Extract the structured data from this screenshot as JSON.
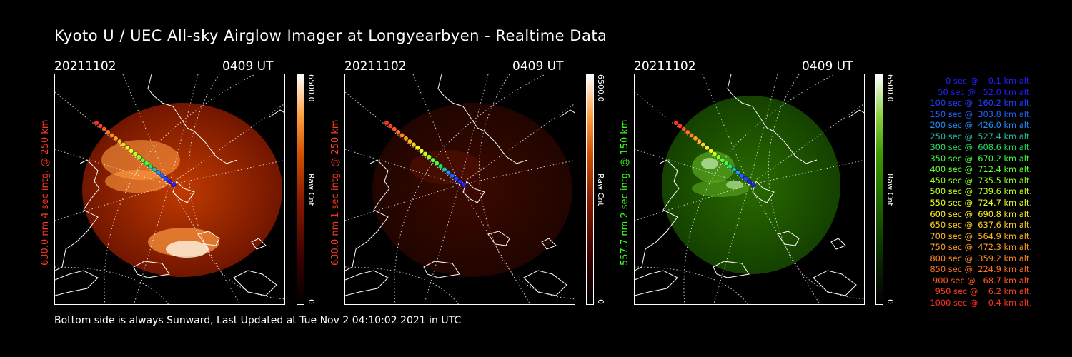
{
  "title": "Kyoto U / UEC All-sky Airglow Imager at Longyearbyen - Realtime Data",
  "panels": [
    {
      "date": "20211102",
      "time": "0409 UT",
      "channel_label": "630.0 nm  4 sec intg. @ 250 km",
      "label_color": "#ff3a20",
      "cbar_max": "6500.0",
      "cbar_unit": "Raw Cnt",
      "cbar_min": "0",
      "palette": "red"
    },
    {
      "date": "20211102",
      "time": "0409 UT",
      "channel_label": "630.0 nm  1 sec intg. @ 250 km",
      "label_color": "#ff3a20",
      "cbar_max": "6500.0",
      "cbar_unit": "Raw Cnt",
      "cbar_min": "0",
      "palette": "dimred"
    },
    {
      "date": "20211102",
      "time": "0409 UT",
      "channel_label": "557.7 nm  2 sec intg. @ 150 km",
      "label_color": "#3cff20",
      "cbar_max": "6500.0",
      "cbar_unit": "Raw Cnt",
      "cbar_min": "0",
      "palette": "green"
    }
  ],
  "footer": "Bottom side is always Sunward, Last Updated at Tue Nov  2 04:10:02 2021 in UTC",
  "legend": [
    {
      "text": "   0 sec @    0.1 km alt.",
      "color": "#2020ff"
    },
    {
      "text": "  50 sec @   52.0 km alt.",
      "color": "#2020ff"
    },
    {
      "text": " 100 sec @  160.2 km alt.",
      "color": "#2040ff"
    },
    {
      "text": " 150 sec @  303.8 km alt.",
      "color": "#2060ff"
    },
    {
      "text": " 200 sec @  426.0 km alt.",
      "color": "#2090ff"
    },
    {
      "text": " 250 sec @  527.4 km alt.",
      "color": "#20c0a0"
    },
    {
      "text": " 300 sec @  608.6 km alt.",
      "color": "#20e060"
    },
    {
      "text": " 350 sec @  670.2 km alt.",
      "color": "#40ff40"
    },
    {
      "text": " 400 sec @  712.4 km alt.",
      "color": "#60ff30"
    },
    {
      "text": " 450 sec @  735.5 km alt.",
      "color": "#90ff20"
    },
    {
      "text": " 500 sec @  739.6 km alt.",
      "color": "#c0ff20"
    },
    {
      "text": " 550 sec @  724.7 km alt.",
      "color": "#e8ff20"
    },
    {
      "text": " 600 sec @  690.8 km alt.",
      "color": "#ffee20"
    },
    {
      "text": " 650 sec @  637.6 km alt.",
      "color": "#ffd020"
    },
    {
      "text": " 700 sec @  564.9 km alt.",
      "color": "#ffb820"
    },
    {
      "text": " 750 sec @  472.3 km alt.",
      "color": "#ffa020"
    },
    {
      "text": " 800 sec @  359.2 km alt.",
      "color": "#ff8820"
    },
    {
      "text": " 850 sec @  224.9 km alt.",
      "color": "#ff7020"
    },
    {
      "text": " 900 sec @   68.7 km alt.",
      "color": "#ff5820"
    },
    {
      "text": " 950 sec @    6.2 km alt.",
      "color": "#ff4020"
    },
    {
      "text": "1000 sec @    0.4 km alt.",
      "color": "#ff3020"
    }
  ]
}
